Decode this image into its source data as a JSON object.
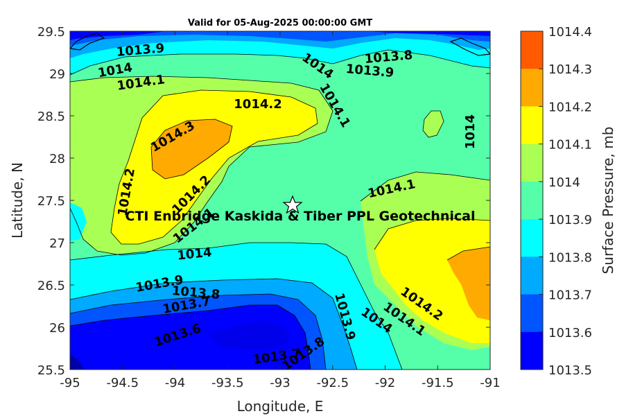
{
  "title": "Valid for 05-Aug-2025 00:00:00 GMT",
  "map": {
    "xlabel": "Longitude, E",
    "ylabel": "Latitude, N",
    "xlim": [
      -95,
      -91
    ],
    "ylim": [
      25.5,
      29.5
    ],
    "xticks": [
      "-95",
      "-94.5",
      "-94",
      "-93.5",
      "-93",
      "-92.5",
      "-92",
      "-91.5",
      "-91"
    ],
    "yticks": [
      "29.5",
      "29",
      "28.5",
      "28",
      "27.5",
      "27",
      "26.5",
      "26",
      "25.5"
    ],
    "site_label": "CTI Enbridge Kaskida & Tiber PPL Geotechnical",
    "site_marker": {
      "lon": -92.85,
      "lat": 27.43,
      "icon": "star-icon"
    },
    "contour_labels": [
      "1013.9",
      "1014",
      "1014.1",
      "1014.2",
      "1014.3",
      "1014.2",
      "1014.2",
      "1014.1",
      "1014",
      "1014.1",
      "1014",
      "1014.1",
      "1014",
      "1014.2",
      "1014.1",
      "1014",
      "1013.8",
      "1013.9",
      "1013.9",
      "1013.8",
      "1013.7",
      "1013.6",
      "1013.7",
      "1013.8",
      "1013.9"
    ]
  },
  "colorbar": {
    "label": "Surface Pressure, mb",
    "ticks": [
      "1014.4",
      "1014.3",
      "1014.2",
      "1014.1",
      "1014",
      "1013.9",
      "1013.8",
      "1013.7",
      "1013.6",
      "1013.5"
    ],
    "colors": [
      "#ff5a00",
      "#ffaa00",
      "#ffff00",
      "#aaff55",
      "#55ffaa",
      "#00ffff",
      "#00aaff",
      "#0055ff",
      "#0000ff",
      "#0000aa"
    ]
  }
}
